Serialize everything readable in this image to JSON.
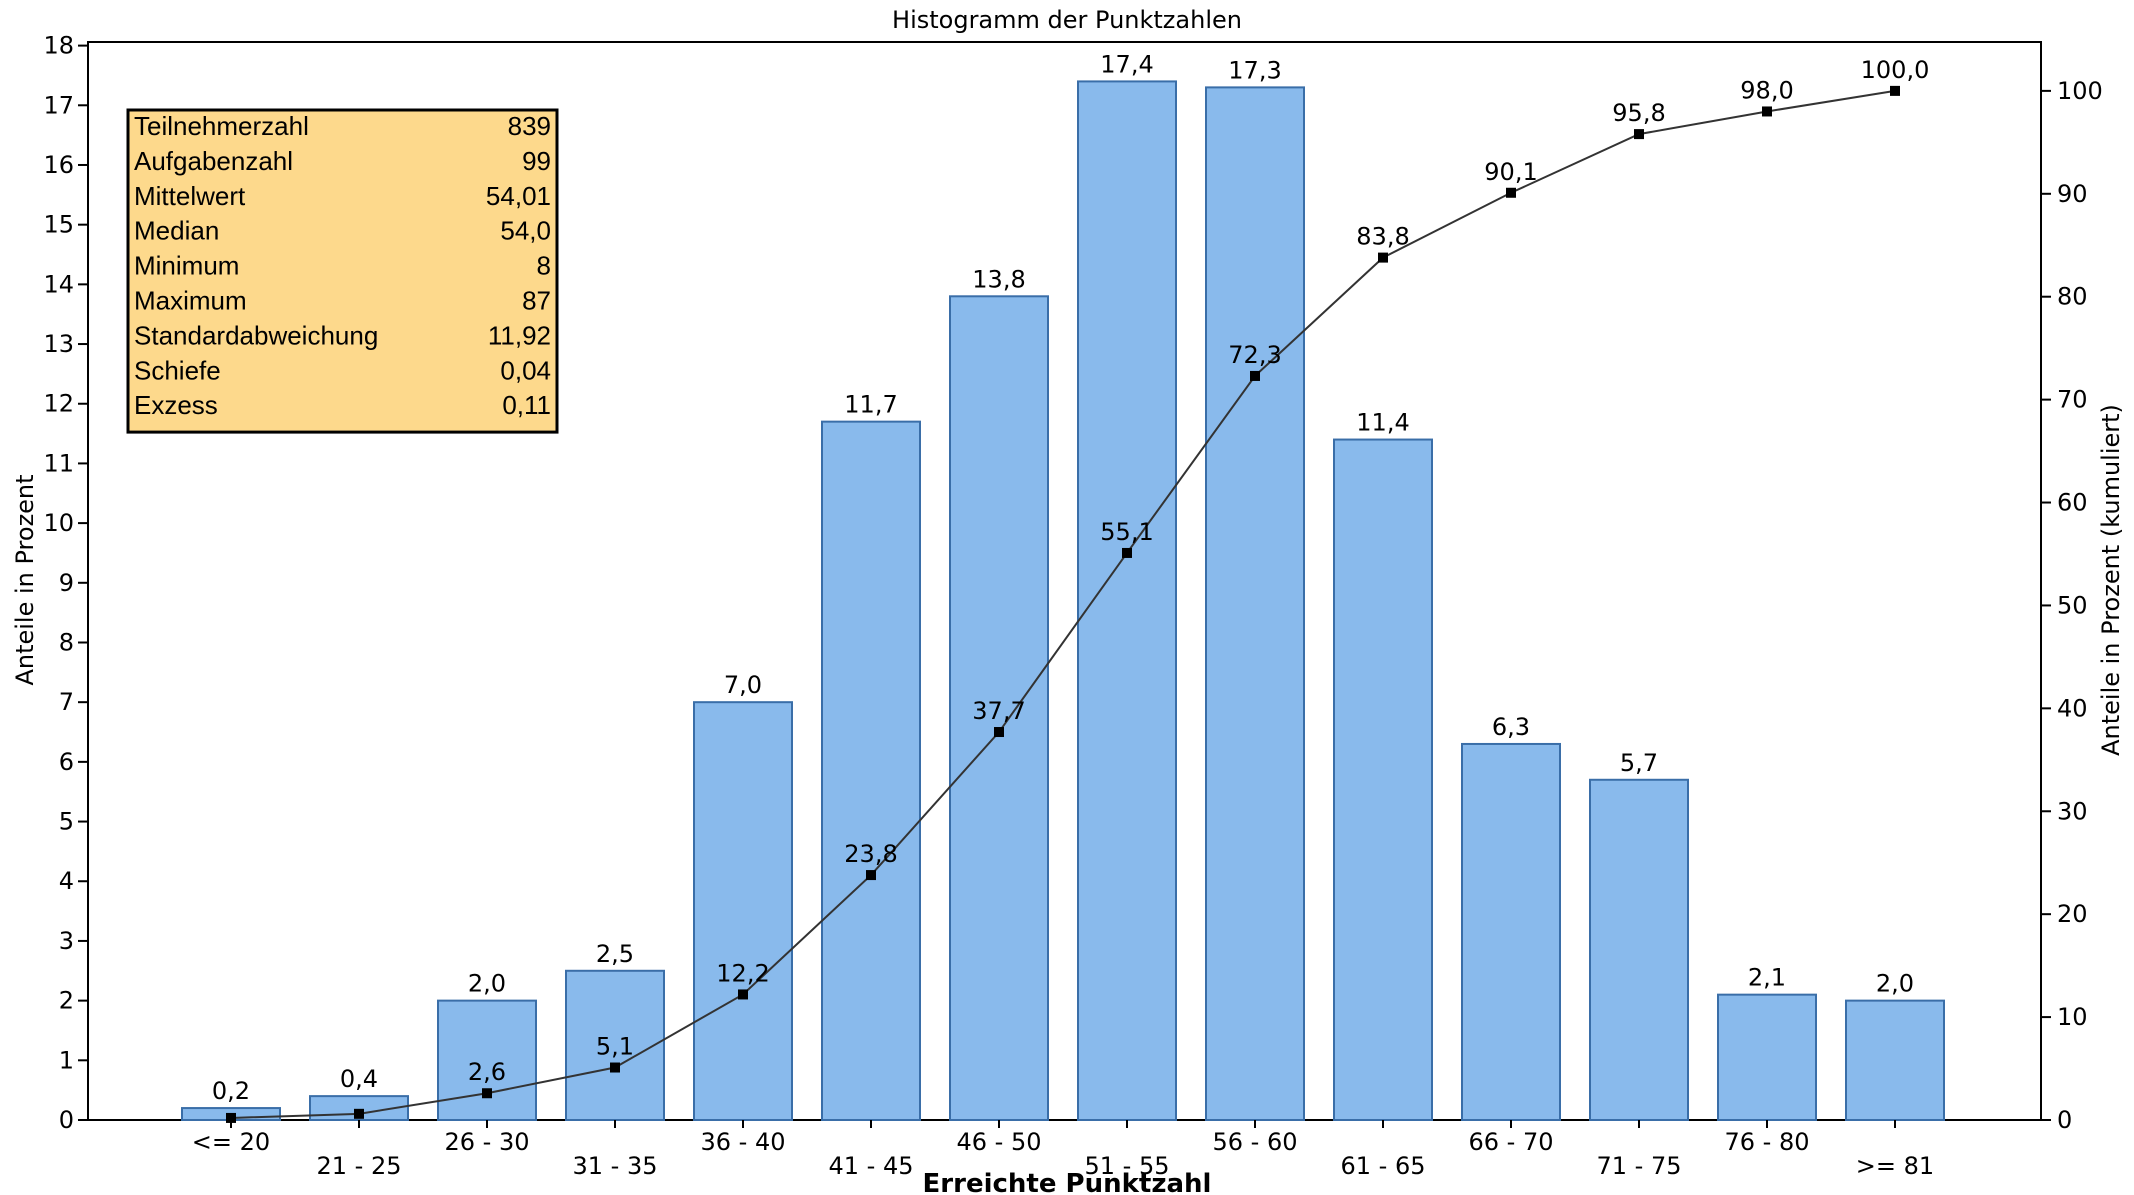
{
  "chart_data": {
    "type": "bar",
    "title": "Histogramm der Punktzahlen",
    "xlabel": "Erreichte Punktzahl",
    "ylabel": "Anteile in Prozent",
    "y2label": "Anteile in Prozent (kumuliert)",
    "ylim": [
      0,
      18
    ],
    "y2lim": [
      0,
      104.4
    ],
    "yticks": [
      0,
      1,
      2,
      3,
      4,
      5,
      6,
      7,
      8,
      9,
      10,
      11,
      12,
      13,
      14,
      15,
      16,
      17,
      18
    ],
    "y2ticks": [
      0,
      10,
      20,
      30,
      40,
      50,
      60,
      70,
      80,
      90,
      100
    ],
    "categories": [
      "<= 20",
      "21 - 25",
      "26 - 30",
      "31 - 35",
      "36 - 40",
      "41 - 45",
      "46 - 50",
      "51 - 55",
      "56 - 60",
      "61 - 65",
      "66 - 70",
      "71 - 75",
      "76 - 80",
      ">= 81"
    ],
    "series": [
      {
        "type": "bar",
        "values": [
          0.2,
          0.4,
          2.0,
          2.5,
          7.0,
          11.7,
          13.8,
          17.4,
          17.3,
          11.4,
          6.3,
          5.7,
          2.1,
          2.0
        ],
        "labels": [
          "0,2",
          "0,4",
          "2,0",
          "2,5",
          "7,0",
          "11,7",
          "13,8",
          "17,4",
          "17,3",
          "11,4",
          "6,3",
          "5,7",
          "2,1",
          "2,0"
        ]
      },
      {
        "type": "line",
        "axis": "right",
        "values": [
          0.2,
          0.6,
          2.6,
          5.1,
          12.2,
          23.8,
          37.7,
          55.1,
          72.3,
          83.8,
          90.1,
          95.8,
          98.0,
          100.0
        ],
        "labels": [
          "",
          "",
          "2,6",
          "5,1",
          "12,2",
          "23,8",
          "37,7",
          "55,1",
          "72,3",
          "83,8",
          "90,1",
          "95,8",
          "98,0",
          "100,0"
        ]
      }
    ],
    "grid": false,
    "colors": {
      "bar_fill": "#89baec",
      "bar_stroke": "#3a6ea8",
      "line": "#333333",
      "marker": "#000000",
      "stats_fill": "#fdd98c"
    }
  },
  "stats": [
    {
      "label": "Teilnehmerzahl",
      "value": "839"
    },
    {
      "label": "Aufgabenzahl",
      "value": "99"
    },
    {
      "label": "Mittelwert",
      "value": "54,01"
    },
    {
      "label": "Median",
      "value": "54,0"
    },
    {
      "label": "Minimum",
      "value": "8"
    },
    {
      "label": "Maximum",
      "value": "87"
    },
    {
      "label": "Standardabweichung",
      "value": "11,92"
    },
    {
      "label": "Schiefe",
      "value": "0,04"
    },
    {
      "label": "Exzess",
      "value": "0,11"
    }
  ]
}
